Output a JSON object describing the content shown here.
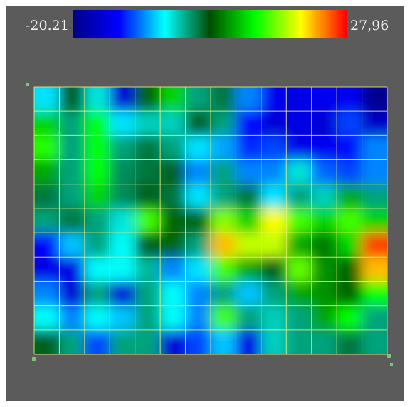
{
  "chart_data": {
    "type": "heatmap",
    "colormap": [
      "#00008b",
      "#0000ff",
      "#00ffff",
      "#004d00",
      "#00ff00",
      "#ffff00",
      "#ff0000"
    ],
    "value_range": [
      -20.21,
      27.96
    ],
    "range_labels": {
      "min": "-20.21",
      "max": "27,96"
    },
    "grid": true,
    "grid_color": "#f0f07a",
    "background": "#5b5b5b",
    "columns": 14,
    "rows": 11,
    "z": [
      [
        -5,
        3,
        -3,
        -15,
        5,
        10,
        0,
        2,
        -8,
        -13,
        -14,
        -13,
        -13,
        -20
      ],
      [
        10,
        0,
        12,
        -5,
        -2,
        -2,
        3,
        0,
        -12,
        -15,
        -14,
        -15,
        -10,
        -16
      ],
      [
        13,
        0,
        12,
        0,
        2,
        0,
        -5,
        -7,
        -11,
        -10,
        -14,
        -13,
        -12,
        -8
      ],
      [
        8,
        0,
        12,
        1,
        2,
        3,
        -8,
        0,
        -8,
        -8,
        -3,
        -9,
        -10,
        -8
      ],
      [
        2,
        0,
        10,
        1,
        3,
        2,
        -5,
        0,
        2,
        -5,
        0,
        -2,
        8,
        0
      ],
      [
        0,
        2,
        0,
        -3,
        14,
        5,
        5,
        16,
        10,
        20,
        14,
        10,
        14,
        10
      ],
      [
        -12,
        -6,
        0,
        -4,
        3,
        5,
        0,
        22,
        18,
        18,
        8,
        6,
        10,
        26
      ],
      [
        -14,
        -14,
        -4,
        -4,
        -1,
        -8,
        -5,
        14,
        8,
        3,
        15,
        7,
        5,
        22
      ],
      [
        -8,
        -15,
        0,
        -15,
        0,
        -4,
        -8,
        0,
        -6,
        0,
        8,
        7,
        5,
        12
      ],
      [
        -4,
        -8,
        -4,
        -6,
        0,
        -4,
        -8,
        14,
        0,
        -2,
        0,
        8,
        12,
        0
      ],
      [
        3,
        0,
        -10,
        0,
        0,
        -15,
        -10,
        -6,
        -14,
        -2,
        0,
        0,
        2,
        0
      ]
    ]
  }
}
